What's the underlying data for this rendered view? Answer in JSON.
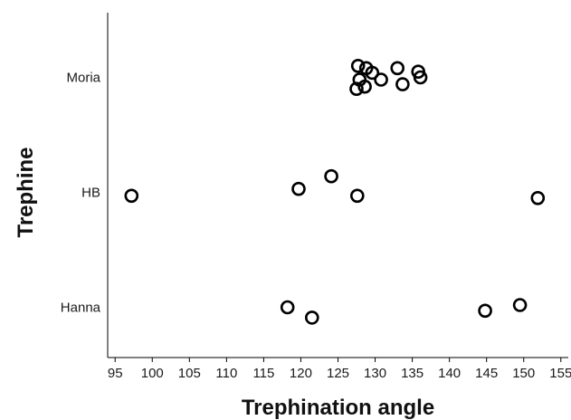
{
  "chart_data": {
    "type": "scatter",
    "title": "",
    "xlabel": "Trephination angle",
    "ylabel": "Trephine",
    "xlim": [
      94,
      156
    ],
    "xticks": [
      95,
      100,
      105,
      110,
      115,
      120,
      125,
      130,
      135,
      140,
      145,
      150,
      155
    ],
    "categories": [
      "Moria",
      "HB",
      "Hanna"
    ],
    "grid": false,
    "legend": "none",
    "marker_color": "#000000",
    "points": [
      {
        "category": "Moria",
        "x": 127.7,
        "jitter": 0.1
      },
      {
        "category": "Moria",
        "x": 128.8,
        "jitter": 0.08
      },
      {
        "category": "Moria",
        "x": 129.6,
        "jitter": 0.04
      },
      {
        "category": "Moria",
        "x": 130.8,
        "jitter": -0.02
      },
      {
        "category": "Moria",
        "x": 133.0,
        "jitter": 0.08
      },
      {
        "category": "Moria",
        "x": 135.8,
        "jitter": 0.05
      },
      {
        "category": "Moria",
        "x": 136.1,
        "jitter": 0.0
      },
      {
        "category": "Moria",
        "x": 127.9,
        "jitter": -0.02
      },
      {
        "category": "Moria",
        "x": 127.5,
        "jitter": -0.1
      },
      {
        "category": "Moria",
        "x": 128.6,
        "jitter": -0.08
      },
      {
        "category": "Moria",
        "x": 133.7,
        "jitter": -0.06
      },
      {
        "category": "HB",
        "x": 97.2,
        "jitter": -0.03
      },
      {
        "category": "HB",
        "x": 119.7,
        "jitter": 0.03
      },
      {
        "category": "HB",
        "x": 124.1,
        "jitter": 0.14
      },
      {
        "category": "HB",
        "x": 127.6,
        "jitter": -0.03
      },
      {
        "category": "HB",
        "x": 151.9,
        "jitter": -0.05
      },
      {
        "category": "Hanna",
        "x": 118.2,
        "jitter": 0.0
      },
      {
        "category": "Hanna",
        "x": 121.5,
        "jitter": -0.09
      },
      {
        "category": "Hanna",
        "x": 144.8,
        "jitter": -0.03
      },
      {
        "category": "Hanna",
        "x": 149.5,
        "jitter": 0.02
      }
    ]
  }
}
